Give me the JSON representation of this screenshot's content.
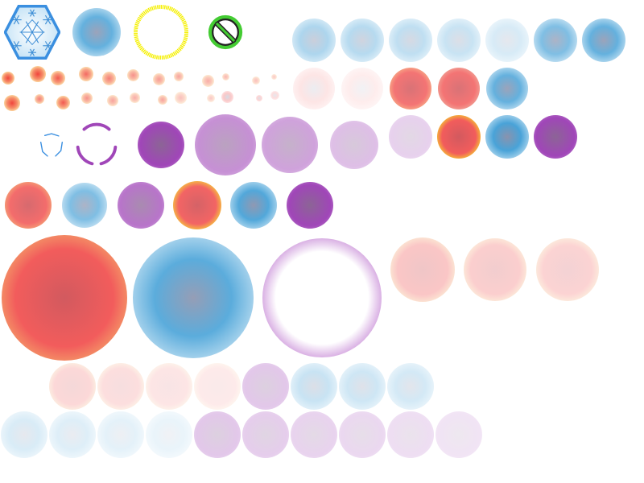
{
  "sheet": {
    "name": "particle-sprite-sheet",
    "colors": {
      "red": "#f25c5c",
      "blue": "#3f9ed6",
      "purple": "#a046b8",
      "yellow": "#f5f000",
      "green": "#55dd44",
      "ice": "#bfe0f5"
    }
  },
  "sprites": [
    {
      "name": "snowflake-hex-icon",
      "kind": "snowflake-hex"
    },
    {
      "name": "blue-soft-orb",
      "kind": "blur",
      "color": "blue",
      "alpha": 0.85
    },
    {
      "name": "yellow-ring-icon",
      "kind": "ring",
      "color": "yellow"
    },
    {
      "name": "no-entry-icon",
      "kind": "prohibited"
    },
    {
      "name": "ice-orb",
      "kind": "blur",
      "color": "blue",
      "alpha": 0.45
    },
    {
      "name": "ice-orb",
      "kind": "blur",
      "color": "blue",
      "alpha": 0.4
    },
    {
      "name": "ice-orb",
      "kind": "blur",
      "color": "blue",
      "alpha": 0.35
    },
    {
      "name": "ice-orb",
      "kind": "blur",
      "color": "blue",
      "alpha": 0.3
    },
    {
      "name": "ice-orb",
      "kind": "blur",
      "color": "blue",
      "alpha": 0.22
    },
    {
      "name": "ice-orb",
      "kind": "blur",
      "color": "blue",
      "alpha": 0.7
    },
    {
      "name": "ice-orb",
      "kind": "blur",
      "color": "blue",
      "alpha": 0.85
    },
    {
      "name": "spark-dot",
      "kind": "spark",
      "alpha": 1.0
    },
    {
      "name": "spark-dot",
      "kind": "spark",
      "alpha": 1.0
    },
    {
      "name": "spark-dot",
      "kind": "spark",
      "alpha": 0.9
    },
    {
      "name": "spark-dot",
      "kind": "spark",
      "alpha": 0.8
    },
    {
      "name": "spark-dot",
      "kind": "spark",
      "alpha": 0.7
    },
    {
      "name": "spark-dot",
      "kind": "spark",
      "alpha": 0.6
    },
    {
      "name": "spark-dot",
      "kind": "spark",
      "alpha": 0.55
    },
    {
      "name": "spark-dot",
      "kind": "spark",
      "alpha": 0.5
    },
    {
      "name": "spark-dot",
      "kind": "spark",
      "alpha": 0.45
    },
    {
      "name": "spark-dot",
      "kind": "spark",
      "alpha": 0.4
    },
    {
      "name": "spark-dot",
      "kind": "spark",
      "alpha": 0.35
    },
    {
      "name": "spark-dot",
      "kind": "spark",
      "alpha": 0.3
    },
    {
      "name": "spark-dot",
      "kind": "spark",
      "alpha": 1.0
    },
    {
      "name": "spark-dot",
      "kind": "spark",
      "alpha": 0.7
    },
    {
      "name": "spark-dot",
      "kind": "spark",
      "alpha": 0.9
    },
    {
      "name": "spark-dot",
      "kind": "spark",
      "alpha": 0.6
    },
    {
      "name": "spark-dot",
      "kind": "spark",
      "alpha": 0.5
    },
    {
      "name": "spark-dot",
      "kind": "spark",
      "alpha": 0.45
    },
    {
      "name": "spark-dot",
      "kind": "spark",
      "alpha": 0.5
    },
    {
      "name": "spark-dot",
      "kind": "spark",
      "alpha": 0.35
    },
    {
      "name": "spark-dot",
      "kind": "spark",
      "alpha": 0.3
    },
    {
      "name": "pink-orb",
      "kind": "blur",
      "color": "red",
      "alpha": 0.35
    },
    {
      "name": "pink-orb",
      "kind": "blur",
      "color": "red",
      "alpha": 0.28
    },
    {
      "name": "pink-orb",
      "kind": "blur",
      "color": "red",
      "alpha": 0.22
    },
    {
      "name": "pink-orb",
      "kind": "blur",
      "color": "red",
      "alpha": 0.17
    },
    {
      "name": "pink-orb",
      "kind": "blur",
      "color": "red",
      "alpha": 0.12
    },
    {
      "name": "red-orb-small",
      "kind": "glow",
      "color": "red",
      "edge": "#f6a060",
      "alpha": 0.85
    },
    {
      "name": "red-orb-medium",
      "kind": "glow",
      "color": "red",
      "edge": "#e8907a",
      "alpha": 0.85
    },
    {
      "name": "blue-orb-medium",
      "kind": "blur",
      "color": "blue",
      "alpha": 0.85
    },
    {
      "name": "blue-arc-ring-icon",
      "kind": "arc-ring",
      "color": "blue"
    },
    {
      "name": "purple-arc-ring-icon",
      "kind": "arc-ring",
      "color": "purple"
    },
    {
      "name": "purple-orb-green-rim",
      "kind": "rim",
      "color": "purple",
      "rim": "green",
      "alpha": 1.0
    },
    {
      "name": "purple-orb-green-rim",
      "kind": "rim",
      "color": "purple",
      "rim": "green",
      "alpha": 0.6
    },
    {
      "name": "purple-orb-green-rim",
      "kind": "rim",
      "color": "purple",
      "rim": "green",
      "alpha": 0.5
    },
    {
      "name": "purple-orb-green-rim",
      "kind": "rim",
      "color": "purple",
      "rim": "green",
      "alpha": 0.35
    },
    {
      "name": "purple-orb-green-rim",
      "kind": "rim",
      "color": "purple",
      "rim": "green",
      "alpha": 0.25
    },
    {
      "name": "red-orb-yellow-rim",
      "kind": "glow",
      "color": "red",
      "edge": "#f5e000",
      "alpha": 1.0
    },
    {
      "name": "blue-orb",
      "kind": "blur",
      "color": "blue",
      "alpha": 1.0
    },
    {
      "name": "purple-orb-green-rim",
      "kind": "rim",
      "color": "purple",
      "rim": "green",
      "alpha": 1.0
    },
    {
      "name": "red-orb-orange-rim",
      "kind": "glow",
      "color": "red",
      "edge": "#f29a50",
      "alpha": 0.9
    },
    {
      "name": "blue-orb",
      "kind": "blur",
      "color": "blue",
      "alpha": 0.7
    },
    {
      "name": "purple-orb-grey-rim",
      "kind": "rim",
      "color": "purple",
      "rim": "grey",
      "alpha": 0.75
    },
    {
      "name": "red-orb-large",
      "kind": "glow",
      "color": "red",
      "edge": "#f5e000",
      "alpha": 0.95
    },
    {
      "name": "blue-orb-large",
      "kind": "blur",
      "color": "blue",
      "alpha": 0.95
    },
    {
      "name": "purple-orb-large",
      "kind": "rim",
      "color": "purple",
      "rim": "green",
      "alpha": 1.0
    },
    {
      "name": "red-orb-orange-rim",
      "kind": "glow",
      "color": "red",
      "edge": "#f29a50",
      "alpha": 1.0
    },
    {
      "name": "blue-orb",
      "kind": "blur",
      "color": "blue",
      "alpha": 0.9
    },
    {
      "name": "purple-bubble-ring-icon",
      "kind": "bubble",
      "color": "purple"
    },
    {
      "name": "pink-orb-faint",
      "kind": "glow",
      "color": "red",
      "edge": "#f5e080",
      "alpha": 0.35
    },
    {
      "name": "pink-orb-faint",
      "kind": "glow",
      "color": "red",
      "edge": "#f5e080",
      "alpha": 0.3
    },
    {
      "name": "pink-orb-faint",
      "kind": "glow",
      "color": "red",
      "edge": "#f5e080",
      "alpha": 0.27
    },
    {
      "name": "pink-orb-faint",
      "kind": "glow",
      "color": "red",
      "edge": "#f5e080",
      "alpha": 0.24
    },
    {
      "name": "pink-orb-faint",
      "kind": "glow",
      "color": "red",
      "edge": "#f5e080",
      "alpha": 0.2
    },
    {
      "name": "pink-orb-faint",
      "kind": "glow",
      "color": "red",
      "edge": "#f5e080",
      "alpha": 0.16
    },
    {
      "name": "pink-orb-faint",
      "kind": "glow",
      "color": "red",
      "edge": "#f5e080",
      "alpha": 0.13
    },
    {
      "name": "lilac-orb-faint",
      "kind": "rim",
      "color": "purple",
      "rim": "green",
      "alpha": 0.3
    },
    {
      "name": "ice-orb-faint",
      "kind": "blur",
      "color": "blue",
      "alpha": 0.3
    },
    {
      "name": "ice-orb-faint",
      "kind": "blur",
      "color": "blue",
      "alpha": 0.27
    },
    {
      "name": "ice-orb-faint",
      "kind": "blur",
      "color": "blue",
      "alpha": 0.24
    },
    {
      "name": "ice-orb-faint",
      "kind": "blur",
      "color": "blue",
      "alpha": 0.21
    },
    {
      "name": "ice-orb-faint",
      "kind": "blur",
      "color": "blue",
      "alpha": 0.18
    },
    {
      "name": "ice-orb-faint",
      "kind": "blur",
      "color": "blue",
      "alpha": 0.15
    },
    {
      "name": "ice-orb-faint",
      "kind": "blur",
      "color": "blue",
      "alpha": 0.12
    },
    {
      "name": "lilac-orb-faint",
      "kind": "rim",
      "color": "purple",
      "rim": "green",
      "alpha": 0.3
    },
    {
      "name": "lilac-orb-faint",
      "kind": "rim",
      "color": "purple",
      "rim": "green",
      "alpha": 0.27
    },
    {
      "name": "lilac-orb-faint",
      "kind": "rim",
      "color": "purple",
      "rim": "green",
      "alpha": 0.24
    },
    {
      "name": "lilac-orb-faint",
      "kind": "rim",
      "color": "purple",
      "rim": "green",
      "alpha": 0.21
    },
    {
      "name": "lilac-orb-faint",
      "kind": "rim",
      "color": "purple",
      "rim": "green",
      "alpha": 0.18
    },
    {
      "name": "lilac-orb-faint",
      "kind": "rim",
      "color": "purple",
      "rim": "green",
      "alpha": 0.15
    }
  ]
}
